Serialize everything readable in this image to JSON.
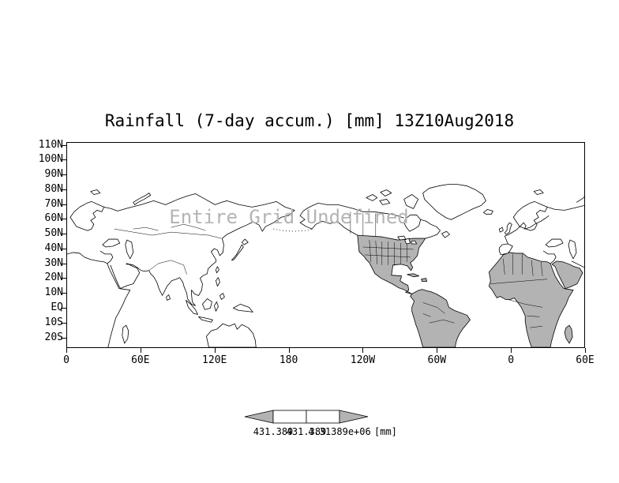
{
  "title": "Rainfall (7-day accum.) [mm] 13Z10Aug2018",
  "watermark_message": "Entire Grid Undefined",
  "axes": {
    "y_tick_labels": [
      "110N",
      "100N",
      "90N",
      "80N",
      "70N",
      "60N",
      "50N",
      "40N",
      "30N",
      "20N",
      "10N",
      "EQ",
      "10S",
      "20S"
    ],
    "x_tick_labels": [
      "0",
      "60E",
      "120E",
      "180",
      "120W",
      "60W",
      "0",
      "60E"
    ]
  },
  "colorbar": {
    "tick_labels": [
      "431.389",
      "431.389",
      "4.31389e+06"
    ],
    "unit_label": "[mm]"
  },
  "colors": {
    "background": "#ffffff",
    "line": "#000000",
    "shaded_land": "#b3b3b3",
    "watermark": "#b4b4b4",
    "colorbar_arrow": "#b3b3b3"
  },
  "chart_data": {
    "type": "heatmap",
    "title": "Rainfall (7-day accum.) [mm] 13Z10Aug2018",
    "variable": "Rainfall (7-day accum.)",
    "units": "mm",
    "valid_time": "13Z10Aug2018",
    "x": {
      "label": "longitude",
      "tick_labels": [
        "0",
        "60E",
        "120E",
        "180",
        "120W",
        "60W",
        "0",
        "60E"
      ]
    },
    "y": {
      "label": "latitude",
      "tick_labels": [
        "110N",
        "100N",
        "90N",
        "80N",
        "70N",
        "60N",
        "50N",
        "40N",
        "30N",
        "20N",
        "10N",
        "EQ",
        "10S",
        "20S"
      ]
    },
    "values": [],
    "annotation": "Entire Grid Undefined",
    "colorbar_tick_labels": [
      "431.389",
      "431.389",
      "4.31389e+06"
    ],
    "legend_position": "bottom-center",
    "grid": false,
    "shaded_basemap_regions": [
      "North America (USA/Mexico/Central America)",
      "South America",
      "Africa",
      "Arabian Peninsula",
      "Caribbean islands",
      "Madagascar"
    ]
  }
}
